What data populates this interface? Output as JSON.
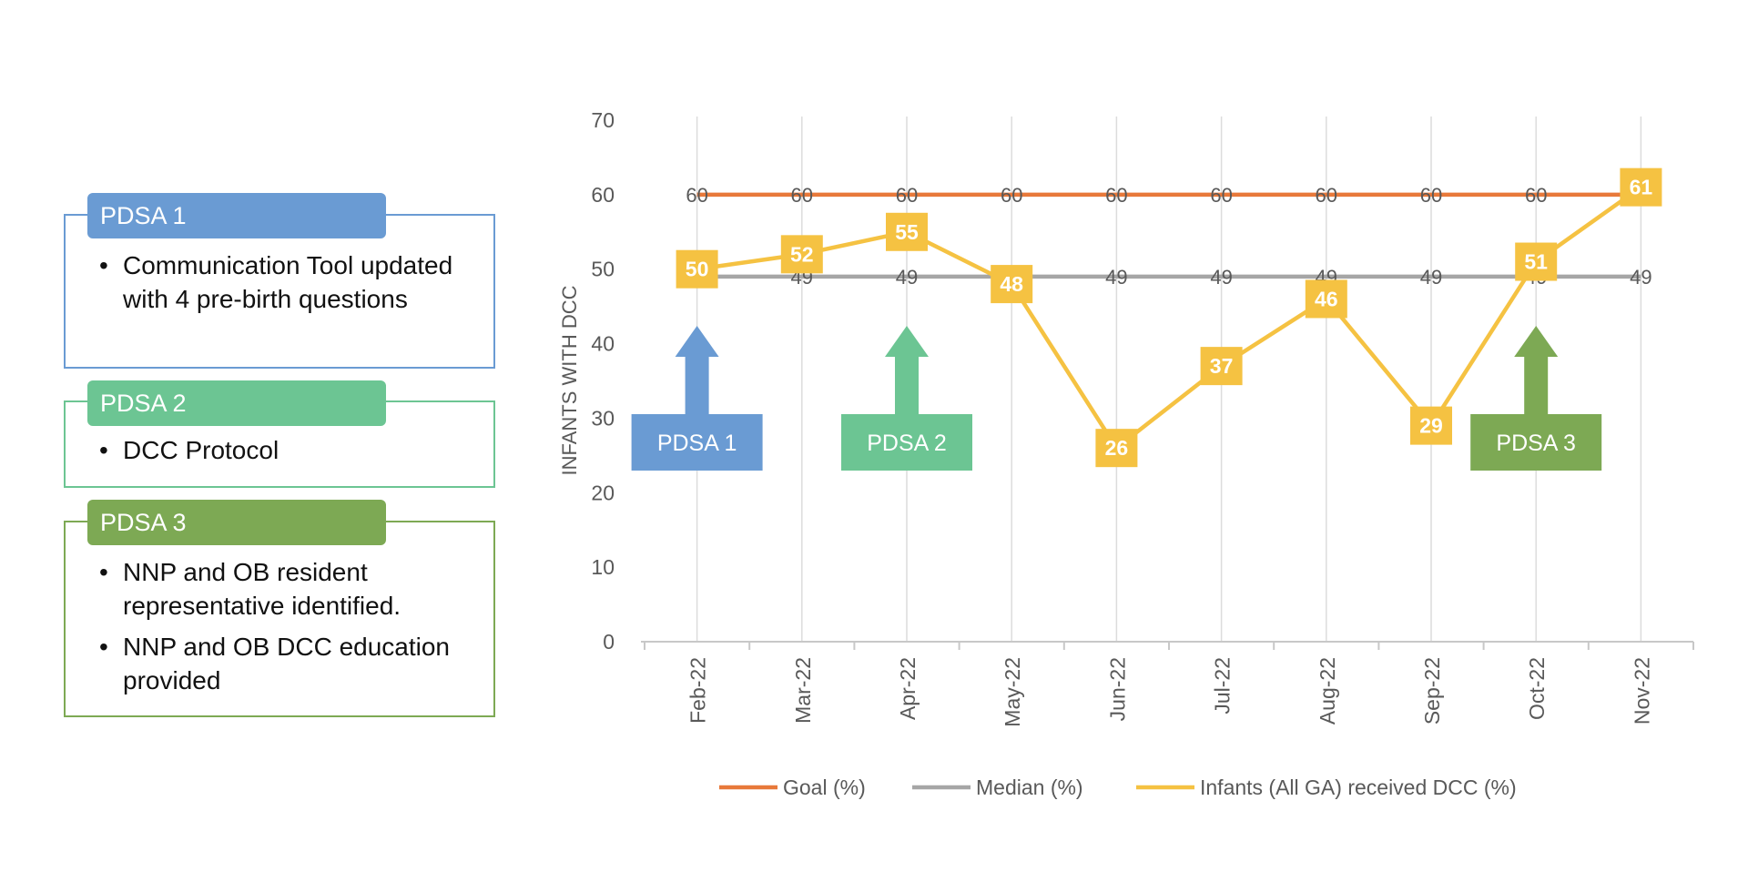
{
  "pdsa_panels": [
    {
      "title": "PDSA 1",
      "color": "#6a9bd3",
      "items": [
        "Communication Tool updated with 4 pre-birth questions"
      ]
    },
    {
      "title": "PDSA 2",
      "color": "#6cc593",
      "items": [
        "DCC Protocol"
      ]
    },
    {
      "title": "PDSA 3",
      "color": "#7da954",
      "items": [
        "NNP and OB resident representative identified.",
        "NNP and OB DCC education provided"
      ]
    }
  ],
  "chart_data": {
    "type": "line",
    "categories": [
      "Feb-22",
      "Mar-22",
      "Apr-22",
      "May-22",
      "Jun-22",
      "Jul-22",
      "Aug-22",
      "Sep-22",
      "Oct-22",
      "Nov-22"
    ],
    "series": [
      {
        "name": "Goal (%)",
        "color": "#e8793a",
        "values": [
          60,
          60,
          60,
          60,
          60,
          60,
          60,
          60,
          60,
          60
        ]
      },
      {
        "name": "Median (%)",
        "color": "#a6a6a6",
        "values": [
          49,
          49,
          49,
          49,
          49,
          49,
          49,
          49,
          49,
          49
        ]
      },
      {
        "name": "Infants (All GA) received DCC (%)",
        "color": "#f5c242",
        "values": [
          50,
          52,
          55,
          48,
          26,
          37,
          46,
          29,
          51,
          61
        ]
      }
    ],
    "ylabel": "INFANTS WITH DCC",
    "ylim": [
      0,
      70
    ],
    "yticks": [
      0,
      10,
      20,
      30,
      40,
      50,
      60,
      70
    ],
    "annotations": [
      {
        "label": "PDSA 1",
        "category": "Feb-22",
        "color": "#6a9bd3"
      },
      {
        "label": "PDSA 2",
        "category": "Apr-22",
        "color": "#6cc593"
      },
      {
        "label": "PDSA 3",
        "category": "Oct-22",
        "color": "#7da954"
      }
    ],
    "legend_position": "bottom",
    "grid": "vertical"
  }
}
